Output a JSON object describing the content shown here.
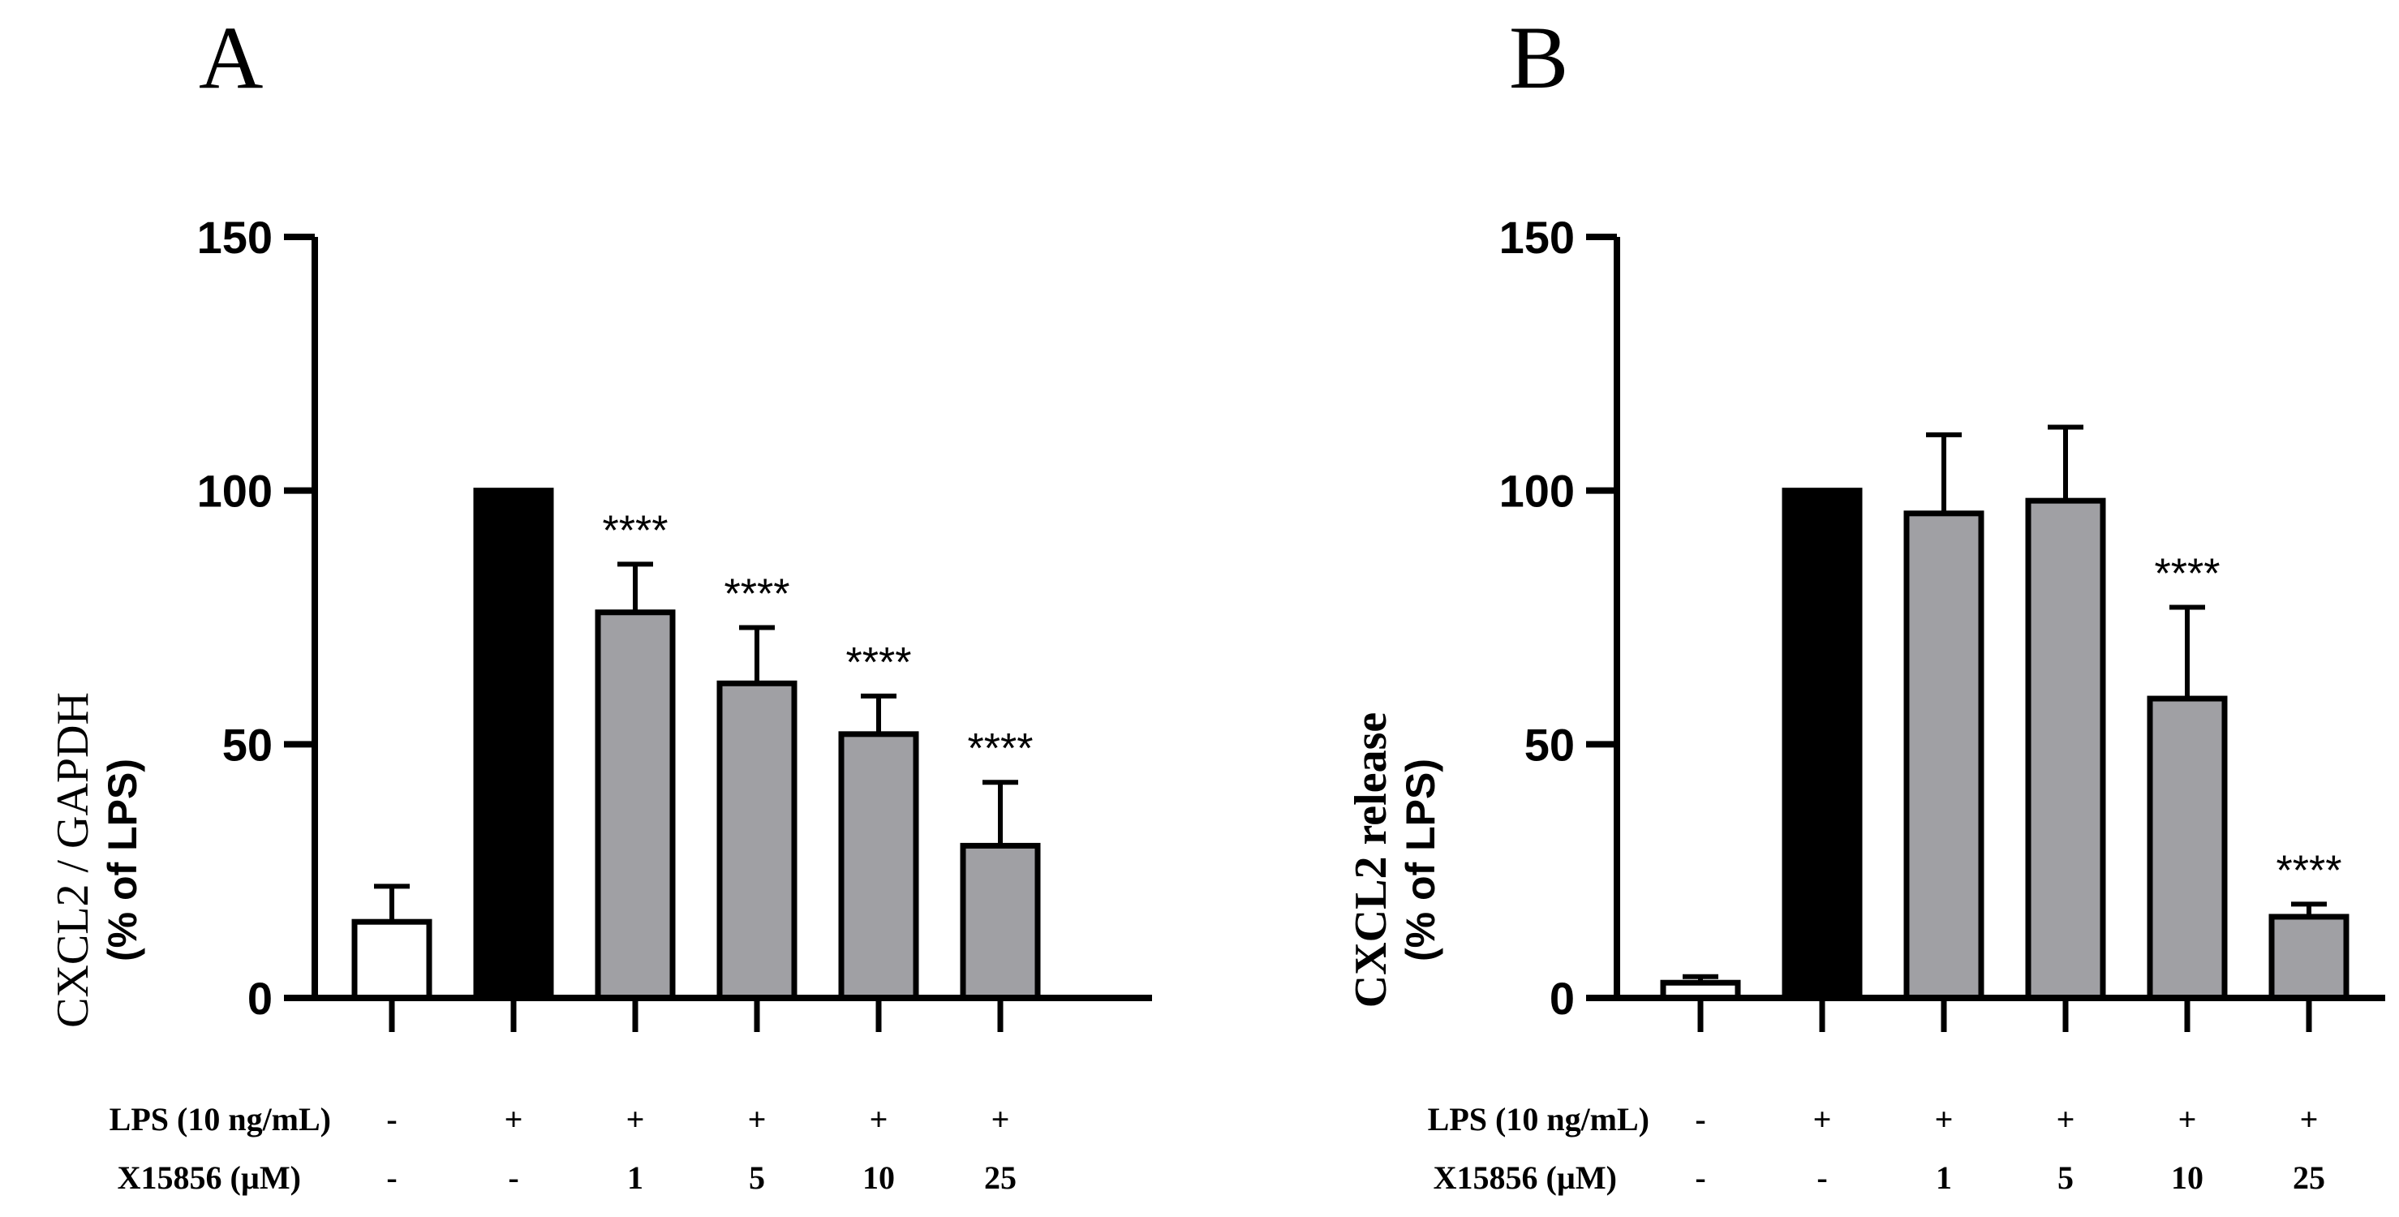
{
  "colors": {
    "control": "#ffffff",
    "lps": "#000000",
    "treated": "#a0a0a4",
    "outline": "#000000"
  },
  "treatment_rows": {
    "lps": {
      "label": "LPS (10 ng/mL)",
      "values": [
        "-",
        "+",
        "+",
        "+",
        "+",
        "+"
      ]
    },
    "drug": {
      "label": "X15856 (µM)",
      "values": [
        "-",
        "-",
        "1",
        "5",
        "10",
        "25"
      ]
    }
  },
  "chart_data": [
    {
      "type": "bar",
      "panel_letter": "A",
      "ylabel": "CXCL2 / GAPDH",
      "ylabel_sub": "(% of LPS)",
      "ylim": [
        0,
        150
      ],
      "yticks": [
        0,
        50,
        100,
        150
      ],
      "categories": [
        "Control",
        "LPS",
        "LPS + X15856 1 µM",
        "LPS + X15856 5 µM",
        "LPS + X15856 10 µM",
        "LPS + X15856 25 µM"
      ],
      "values": [
        15,
        100,
        76,
        62,
        52,
        30
      ],
      "errors": [
        7,
        0,
        9.5,
        11,
        7.5,
        12.5
      ],
      "significance": [
        "",
        "",
        "****",
        "****",
        "****",
        "****"
      ],
      "fills": [
        "control",
        "lps",
        "treated",
        "treated",
        "treated",
        "treated"
      ]
    },
    {
      "type": "bar",
      "panel_letter": "B",
      "ylabel": "CXCL2 release",
      "ylabel_sub": "(% of LPS)",
      "ylim": [
        0,
        150
      ],
      "yticks": [
        0,
        50,
        100,
        150
      ],
      "categories": [
        "Control",
        "LPS",
        "LPS + X15856 1 µM",
        "LPS + X15856 5 µM",
        "LPS + X15856 10 µM",
        "LPS + X15856 25 µM"
      ],
      "values": [
        3,
        100,
        95.5,
        98,
        59,
        16
      ],
      "errors": [
        1.2,
        0,
        15.5,
        14.5,
        18,
        2.5
      ],
      "significance": [
        "",
        "",
        "",
        "",
        "****",
        "****"
      ],
      "fills": [
        "control",
        "lps",
        "treated",
        "treated",
        "treated",
        "treated"
      ]
    }
  ]
}
